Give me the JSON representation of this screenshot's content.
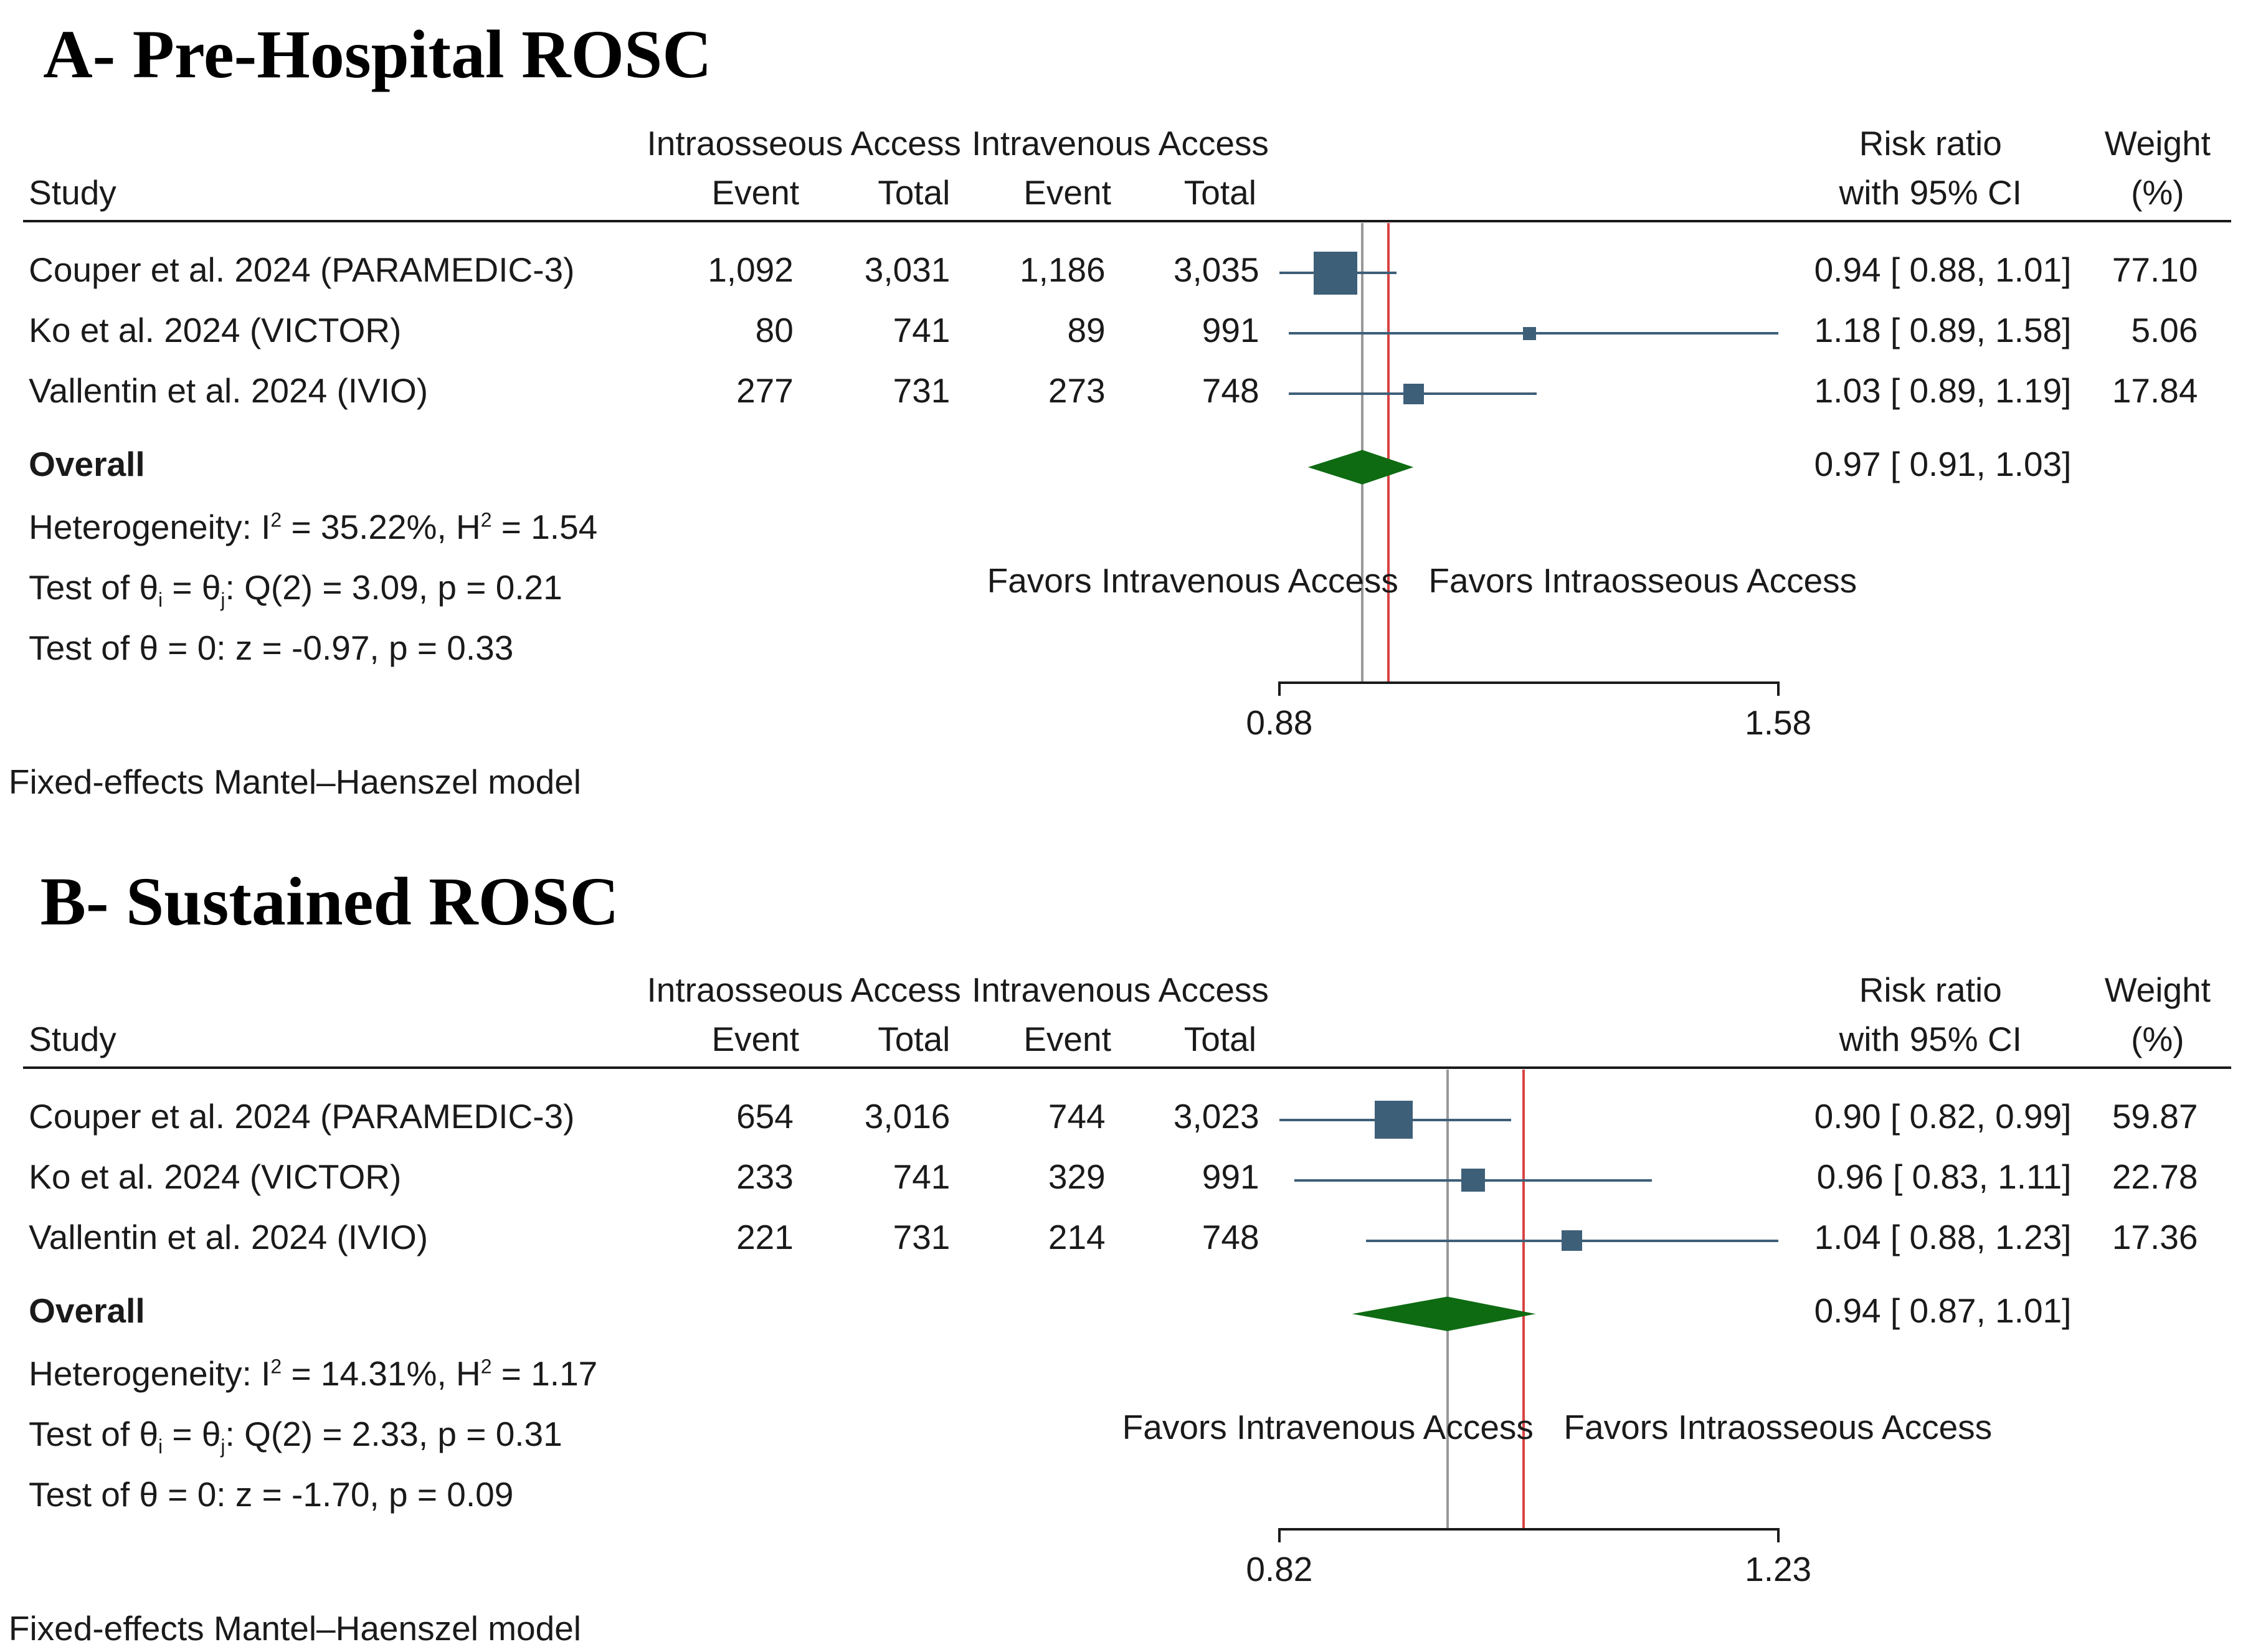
{
  "colors": {
    "marker": "#3e5f78",
    "diamond": "#0e6b12",
    "null_line": "#d94444",
    "overall_line": "#999999",
    "text": "#1a1a1a"
  },
  "chart_data": [
    {
      "type": "forest",
      "title": "A- Pre-Hospital ROSC",
      "group1": "Intraosseous Access",
      "group2": "Intravenous Access",
      "col_study": "Study",
      "col_event": "Event",
      "col_total": "Total",
      "col_rr_1": "Risk ratio",
      "col_rr_2": "with 95% CI",
      "col_w_1": "Weight",
      "col_w_2": "(%)",
      "xaxis": {
        "scale": "log",
        "ticks": [
          0.88,
          1.58
        ],
        "tick_labels": [
          "0.88",
          "1.58"
        ]
      },
      "null_value": 1.0,
      "studies": [
        {
          "name": "Couper et al. 2024 (PARAMEDIC-3)",
          "e1": "1,092",
          "n1": "3,031",
          "e2": "1,186",
          "n2": "3,035",
          "rr": 0.94,
          "lo": 0.88,
          "hi": 1.01,
          "rr_text": "0.94 [ 0.88,  1.01]",
          "weight": 77.1,
          "weight_text": "77.10"
        },
        {
          "name": "Ko et al. 2024 (VICTOR)",
          "e1": "80",
          "n1": "741",
          "e2": "89",
          "n2": "991",
          "rr": 1.18,
          "lo": 0.89,
          "hi": 1.58,
          "rr_text": "1.18 [ 0.89,  1.58]",
          "weight": 5.06,
          "weight_text": "5.06"
        },
        {
          "name": "Vallentin et al. 2024 (IVIO)",
          "e1": "277",
          "n1": "731",
          "e2": "273",
          "n2": "748",
          "rr": 1.03,
          "lo": 0.89,
          "hi": 1.19,
          "rr_text": "1.03 [ 0.89,  1.19]",
          "weight": 17.84,
          "weight_text": "17.84"
        }
      ],
      "overall": {
        "label": "Overall",
        "rr": 0.97,
        "lo": 0.91,
        "hi": 1.03,
        "rr_text": "0.97 [ 0.91,  1.03]"
      },
      "heterogeneity": {
        "prefix": "Heterogeneity: I",
        "i2": "35.22%",
        "h2": "1.54"
      },
      "test_q": {
        "q": "3.09",
        "p": "0.21",
        "df": "2"
      },
      "test_z": {
        "z": "-0.97",
        "p": "0.33"
      },
      "favors_left": "Favors Intravenous Access",
      "favors_right": "Favors Intraosseous Access",
      "model": "Fixed-effects Mantel–Haenszel model"
    },
    {
      "type": "forest",
      "title": "B- Sustained ROSC",
      "group1": "Intraosseous Access",
      "group2": "Intravenous Access",
      "col_study": "Study",
      "col_event": "Event",
      "col_total": "Total",
      "col_rr_1": "Risk ratio",
      "col_rr_2": "with 95% CI",
      "col_w_1": "Weight",
      "col_w_2": "(%)",
      "xaxis": {
        "scale": "log",
        "ticks": [
          0.82,
          1.23
        ],
        "tick_labels": [
          "0.82",
          "1.23"
        ]
      },
      "null_value": 1.0,
      "studies": [
        {
          "name": "Couper et al. 2024 (PARAMEDIC-3)",
          "e1": "654",
          "n1": "3,016",
          "e2": "744",
          "n2": "3,023",
          "rr": 0.9,
          "lo": 0.82,
          "hi": 0.99,
          "rr_text": "0.90 [ 0.82,  0.99]",
          "weight": 59.87,
          "weight_text": "59.87"
        },
        {
          "name": "Ko et al. 2024 (VICTOR)",
          "e1": "233",
          "n1": "741",
          "e2": "329",
          "n2": "991",
          "rr": 0.96,
          "lo": 0.83,
          "hi": 1.11,
          "rr_text": "0.96 [ 0.83,  1.11]",
          "weight": 22.78,
          "weight_text": "22.78"
        },
        {
          "name": "Vallentin et al. 2024 (IVIO)",
          "e1": "221",
          "n1": "731",
          "e2": "214",
          "n2": "748",
          "rr": 1.04,
          "lo": 0.88,
          "hi": 1.23,
          "rr_text": "1.04 [ 0.88,  1.23]",
          "weight": 17.36,
          "weight_text": "17.36"
        }
      ],
      "overall": {
        "label": "Overall",
        "rr": 0.94,
        "lo": 0.87,
        "hi": 1.01,
        "rr_text": "0.94 [ 0.87,  1.01]"
      },
      "heterogeneity": {
        "prefix": "Heterogeneity: I",
        "i2": "14.31%",
        "h2": "1.17"
      },
      "test_q": {
        "q": "2.33",
        "p": "0.31",
        "df": "2"
      },
      "test_z": {
        "z": "-1.70",
        "p": "0.09"
      },
      "favors_left": "Favors Intravenous Access",
      "favors_right": "Favors Intraosseous Access",
      "model": "Fixed-effects Mantel–Haenszel model"
    }
  ]
}
